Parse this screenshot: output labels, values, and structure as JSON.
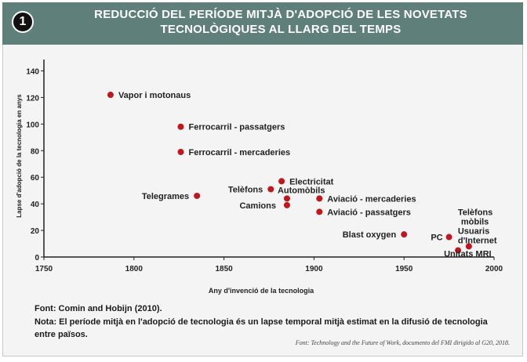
{
  "header": {
    "badge": "1",
    "title_line1": "REDUCCIÓ DEL PERÍODE MITJÀ D'ADOPCIÓ DE LES NOVETATS",
    "title_line2": "TECNOLÒGIQUES AL LLARG DEL TEMPS"
  },
  "colors": {
    "header_bg": "#5f7f7a",
    "point": "#c0161e",
    "axis": "#222222"
  },
  "chart_data": {
    "type": "scatter",
    "xlabel": "Any d'invenció de la tecnologia",
    "ylabel": "Lapse d'adopció de la tecnologia en anys",
    "xlim": [
      1750,
      2000
    ],
    "ylim": [
      0,
      145
    ],
    "xticks": [
      1750,
      1800,
      1850,
      1900,
      1950,
      2000
    ],
    "yticks": [
      0,
      20,
      40,
      60,
      80,
      100,
      120,
      140
    ],
    "grid": false,
    "points": [
      {
        "label": "Vapor i motonaus",
        "x": 1787,
        "y": 122
      },
      {
        "label": "Ferrocarril - passatgers",
        "x": 1826,
        "y": 98
      },
      {
        "label": "Ferrocarril - mercaderies",
        "x": 1826,
        "y": 79
      },
      {
        "label": "Telegrames",
        "x": 1835,
        "y": 46
      },
      {
        "label": "Telèfons",
        "x": 1876,
        "y": 51
      },
      {
        "label": "Electricitat",
        "x": 1882,
        "y": 57
      },
      {
        "label": "Automòbils",
        "x": 1885,
        "y": 44
      },
      {
        "label": "Camions",
        "x": 1885,
        "y": 39
      },
      {
        "label": "Aviació - mercaderies",
        "x": 1903,
        "y": 44
      },
      {
        "label": "Aviació - passatgers",
        "x": 1903,
        "y": 34
      },
      {
        "label": "Blast oxygen",
        "x": 1950,
        "y": 17
      },
      {
        "label": "PC",
        "x": 1975,
        "y": 15
      },
      {
        "label": "Unitats MRI",
        "x": 1980,
        "y": 5
      },
      {
        "label": "Telèfons mòbils Usuaris d'Internet",
        "x": 1986,
        "y": 8
      }
    ]
  },
  "footnotes": {
    "source": "Font: Comin and Hobijn (2010).",
    "note": "Nota: El període mitjà en l'adopció de tecnologia és un lapse temporal mitjà estimat en la difusió de tecnologia entre països.",
    "credit": "Font: Technology and the Future of Work, documento del FMI dirigido al G20, 2018."
  }
}
